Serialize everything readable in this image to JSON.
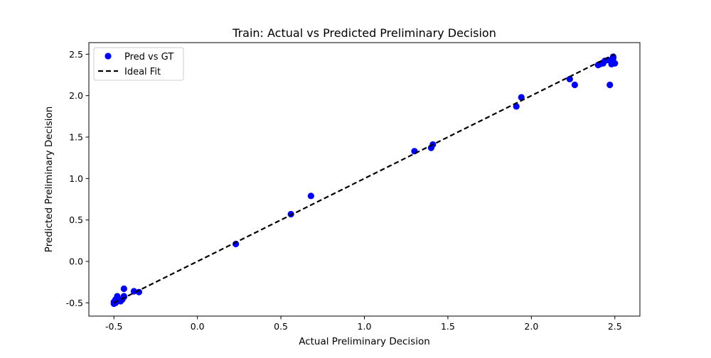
{
  "chart_data": {
    "type": "scatter",
    "title": "Train: Actual vs Predicted Preliminary Decision",
    "xlabel": "Actual Preliminary Decision",
    "ylabel": "Predicted Preliminary Decision",
    "xlim": [
      -0.65,
      2.65
    ],
    "ylim": [
      -0.66,
      2.64
    ],
    "x_ticks": [
      -0.5,
      0.0,
      0.5,
      1.0,
      1.5,
      2.0,
      2.5
    ],
    "x_tick_labels": [
      "-0.5",
      "0.0",
      "0.5",
      "1.0",
      "1.5",
      "2.0",
      "2.5"
    ],
    "y_ticks": [
      -0.5,
      0.0,
      0.5,
      1.0,
      1.5,
      2.0,
      2.5
    ],
    "y_tick_labels": [
      "-0.5",
      "0.0",
      "0.5",
      "1.0",
      "1.5",
      "2.0",
      "2.5"
    ],
    "grid": false,
    "legend_position": "top-left",
    "series": [
      {
        "name": "Pred vs GT",
        "kind": "scatter",
        "color": "#0000ff",
        "points": [
          {
            "x": -0.5,
            "y": -0.51
          },
          {
            "x": -0.5,
            "y": -0.49
          },
          {
            "x": -0.49,
            "y": -0.5
          },
          {
            "x": -0.49,
            "y": -0.46
          },
          {
            "x": -0.48,
            "y": -0.48
          },
          {
            "x": -0.48,
            "y": -0.42
          },
          {
            "x": -0.47,
            "y": -0.47
          },
          {
            "x": -0.46,
            "y": -0.48
          },
          {
            "x": -0.45,
            "y": -0.46
          },
          {
            "x": -0.44,
            "y": -0.42
          },
          {
            "x": -0.44,
            "y": -0.43
          },
          {
            "x": -0.44,
            "y": -0.33
          },
          {
            "x": -0.38,
            "y": -0.36
          },
          {
            "x": -0.35,
            "y": -0.37
          },
          {
            "x": 0.23,
            "y": 0.21
          },
          {
            "x": 0.56,
            "y": 0.57
          },
          {
            "x": 0.68,
            "y": 0.79
          },
          {
            "x": 1.3,
            "y": 1.33
          },
          {
            "x": 1.4,
            "y": 1.37
          },
          {
            "x": 1.41,
            "y": 1.41
          },
          {
            "x": 1.91,
            "y": 1.87
          },
          {
            "x": 1.94,
            "y": 1.98
          },
          {
            "x": 2.23,
            "y": 2.2
          },
          {
            "x": 2.26,
            "y": 2.13
          },
          {
            "x": 2.4,
            "y": 2.37
          },
          {
            "x": 2.41,
            "y": 2.38
          },
          {
            "x": 2.43,
            "y": 2.39
          },
          {
            "x": 2.44,
            "y": 2.42
          },
          {
            "x": 2.46,
            "y": 2.43
          },
          {
            "x": 2.47,
            "y": 2.13
          },
          {
            "x": 2.48,
            "y": 2.38
          },
          {
            "x": 2.49,
            "y": 2.45
          },
          {
            "x": 2.49,
            "y": 2.47
          },
          {
            "x": 2.5,
            "y": 2.39
          }
        ]
      },
      {
        "name": "Ideal Fit",
        "kind": "line",
        "style": "dashed",
        "color": "#000000",
        "x": [
          -0.5,
          2.5
        ],
        "y": [
          -0.5,
          2.5
        ]
      }
    ]
  }
}
